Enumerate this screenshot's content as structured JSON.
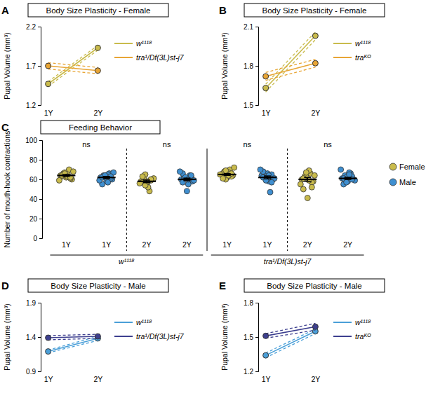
{
  "chart_data": [
    {
      "panel": "A",
      "type": "line",
      "title": "Body Size Plasticity - Female",
      "y_label": "Pupal Volume (mm³)",
      "categories": [
        "1Y",
        "2Y"
      ],
      "ylim": [
        1.2,
        2.2
      ],
      "yticks": [
        1.2,
        1.7,
        2.2
      ],
      "marker": "circle",
      "series": [
        {
          "name": "w¹¹¹⁸",
          "color": "#c9bb4c",
          "values": [
            1.47,
            1.93
          ],
          "errors": [
            0.03,
            0.03
          ]
        },
        {
          "name": "tra¹/Df(3L)st-j7",
          "color": "#e8a535",
          "values": [
            1.7,
            1.64
          ],
          "errors": [
            0.04,
            0.04
          ]
        }
      ]
    },
    {
      "panel": "B",
      "type": "line",
      "title": "Body Size Plasticity - Female",
      "y_label": "Pupal Volume (mm³)",
      "categories": [
        "1Y",
        "2Y"
      ],
      "ylim": [
        1.5,
        2.1
      ],
      "yticks": [
        1.5,
        1.8,
        2.1
      ],
      "marker": "circle",
      "series": [
        {
          "name": "w¹¹¹⁸",
          "color": "#c9bb4c",
          "values": [
            1.63,
            2.03
          ],
          "errors": [
            0.03,
            0.03
          ]
        },
        {
          "name": "traᴷᴼ",
          "color": "#e8a535",
          "values": [
            1.72,
            1.82
          ],
          "errors": [
            0.03,
            0.03
          ]
        }
      ]
    },
    {
      "panel": "C",
      "type": "strip",
      "title": "Feeding Behavior",
      "y_label": "Number of mouth-hook contractions",
      "categories": [
        "1Y",
        "1Y",
        "2Y",
        "2Y",
        "1Y",
        "1Y",
        "2Y",
        "2Y"
      ],
      "group_labels": [
        "w¹¹¹⁸",
        "tra¹/Df(3L)st-j7"
      ],
      "comparisons": [
        {
          "pair": [
            0,
            1
          ],
          "label": "ns"
        },
        {
          "pair": [
            2,
            3
          ],
          "label": "ns"
        },
        {
          "pair": [
            4,
            5
          ],
          "label": "ns"
        },
        {
          "pair": [
            6,
            7
          ],
          "label": "ns"
        }
      ],
      "ylim": [
        0,
        100
      ],
      "yticks": [
        0,
        20,
        40,
        60,
        80,
        100
      ],
      "marker": "circle",
      "legend": "right",
      "series": [
        {
          "name": "Female",
          "color": "#c9bb4c",
          "values": [
            [
              64,
              66,
              62,
              70,
              60,
              63,
              67,
              65,
              61,
              68,
              59,
              64,
              66,
              63,
              62
            ],
            null,
            [
              58,
              62,
              55,
              48,
              60,
              57,
              65,
              52,
              59,
              61,
              56,
              63,
              54,
              58,
              60
            ],
            null,
            [
              65,
              68,
              62,
              70,
              64,
              66,
              60,
              67,
              63,
              72,
              65,
              61,
              69,
              64,
              66
            ],
            null,
            [
              60,
              63,
              41,
              66,
              58,
              50,
              62,
              69,
              57,
              64,
              55,
              61,
              67,
              59,
              52
            ],
            null
          ],
          "means": [
            64,
            null,
            58,
            null,
            65,
            null,
            60,
            null
          ],
          "errors": [
            1.0,
            null,
            1.3,
            null,
            0.9,
            null,
            2.0,
            null
          ]
        },
        {
          "name": "Male",
          "color": "#3f8fd0",
          "values": [
            null,
            [
              62,
              64,
              58,
              66,
              60,
              55,
              63,
              65,
              61,
              67,
              59,
              62,
              64,
              57,
              63
            ],
            null,
            [
              60,
              62,
              48,
              64,
              58,
              66,
              61,
              55,
              63,
              59,
              68,
              57,
              62,
              60,
              64
            ],
            null,
            [
              64,
              62,
              66,
              47,
              60,
              68,
              63,
              58,
              65,
              61,
              70,
              62,
              59,
              64,
              57
            ],
            null,
            [
              61,
              64,
              58,
              66,
              60,
              55,
              62,
              67,
              63,
              59,
              70,
              61,
              57,
              65,
              60
            ]
          ],
          "means": [
            null,
            62,
            null,
            60,
            null,
            62,
            null,
            61
          ],
          "errors": [
            null,
            1.0,
            null,
            1.3,
            null,
            1.5,
            null,
            1.0
          ]
        }
      ]
    },
    {
      "panel": "D",
      "type": "line",
      "title": "Body Size Plasticity - Male",
      "y_label": "Pupal Volume (mm³)",
      "categories": [
        "1Y",
        "2Y"
      ],
      "ylim": [
        0.9,
        1.9
      ],
      "yticks": [
        0.9,
        1.4,
        1.9
      ],
      "marker": "circle",
      "series": [
        {
          "name": "w¹¹¹⁸",
          "color": "#4a9fd8",
          "values": [
            1.19,
            1.38
          ],
          "errors": [
            0.02,
            0.03
          ]
        },
        {
          "name": "tra¹/Df(3L)st-j7",
          "color": "#3d3f8f",
          "values": [
            1.39,
            1.41
          ],
          "errors": [
            0.03,
            0.03
          ]
        }
      ]
    },
    {
      "panel": "E",
      "type": "line",
      "title": "Body Size Plasticity - Male",
      "y_label": "Pupal Volume (mm³)",
      "categories": [
        "1Y",
        "2Y"
      ],
      "ylim": [
        1.2,
        1.8
      ],
      "yticks": [
        1.2,
        1.5,
        1.8
      ],
      "marker": "circle",
      "series": [
        {
          "name": "w¹¹¹⁸",
          "color": "#4a9fd8",
          "values": [
            1.34,
            1.55
          ],
          "errors": [
            0.02,
            0.02
          ]
        },
        {
          "name": "traᴷᴼ",
          "color": "#3d3f8f",
          "values": [
            1.51,
            1.59
          ],
          "errors": [
            0.02,
            0.03
          ]
        }
      ]
    }
  ]
}
